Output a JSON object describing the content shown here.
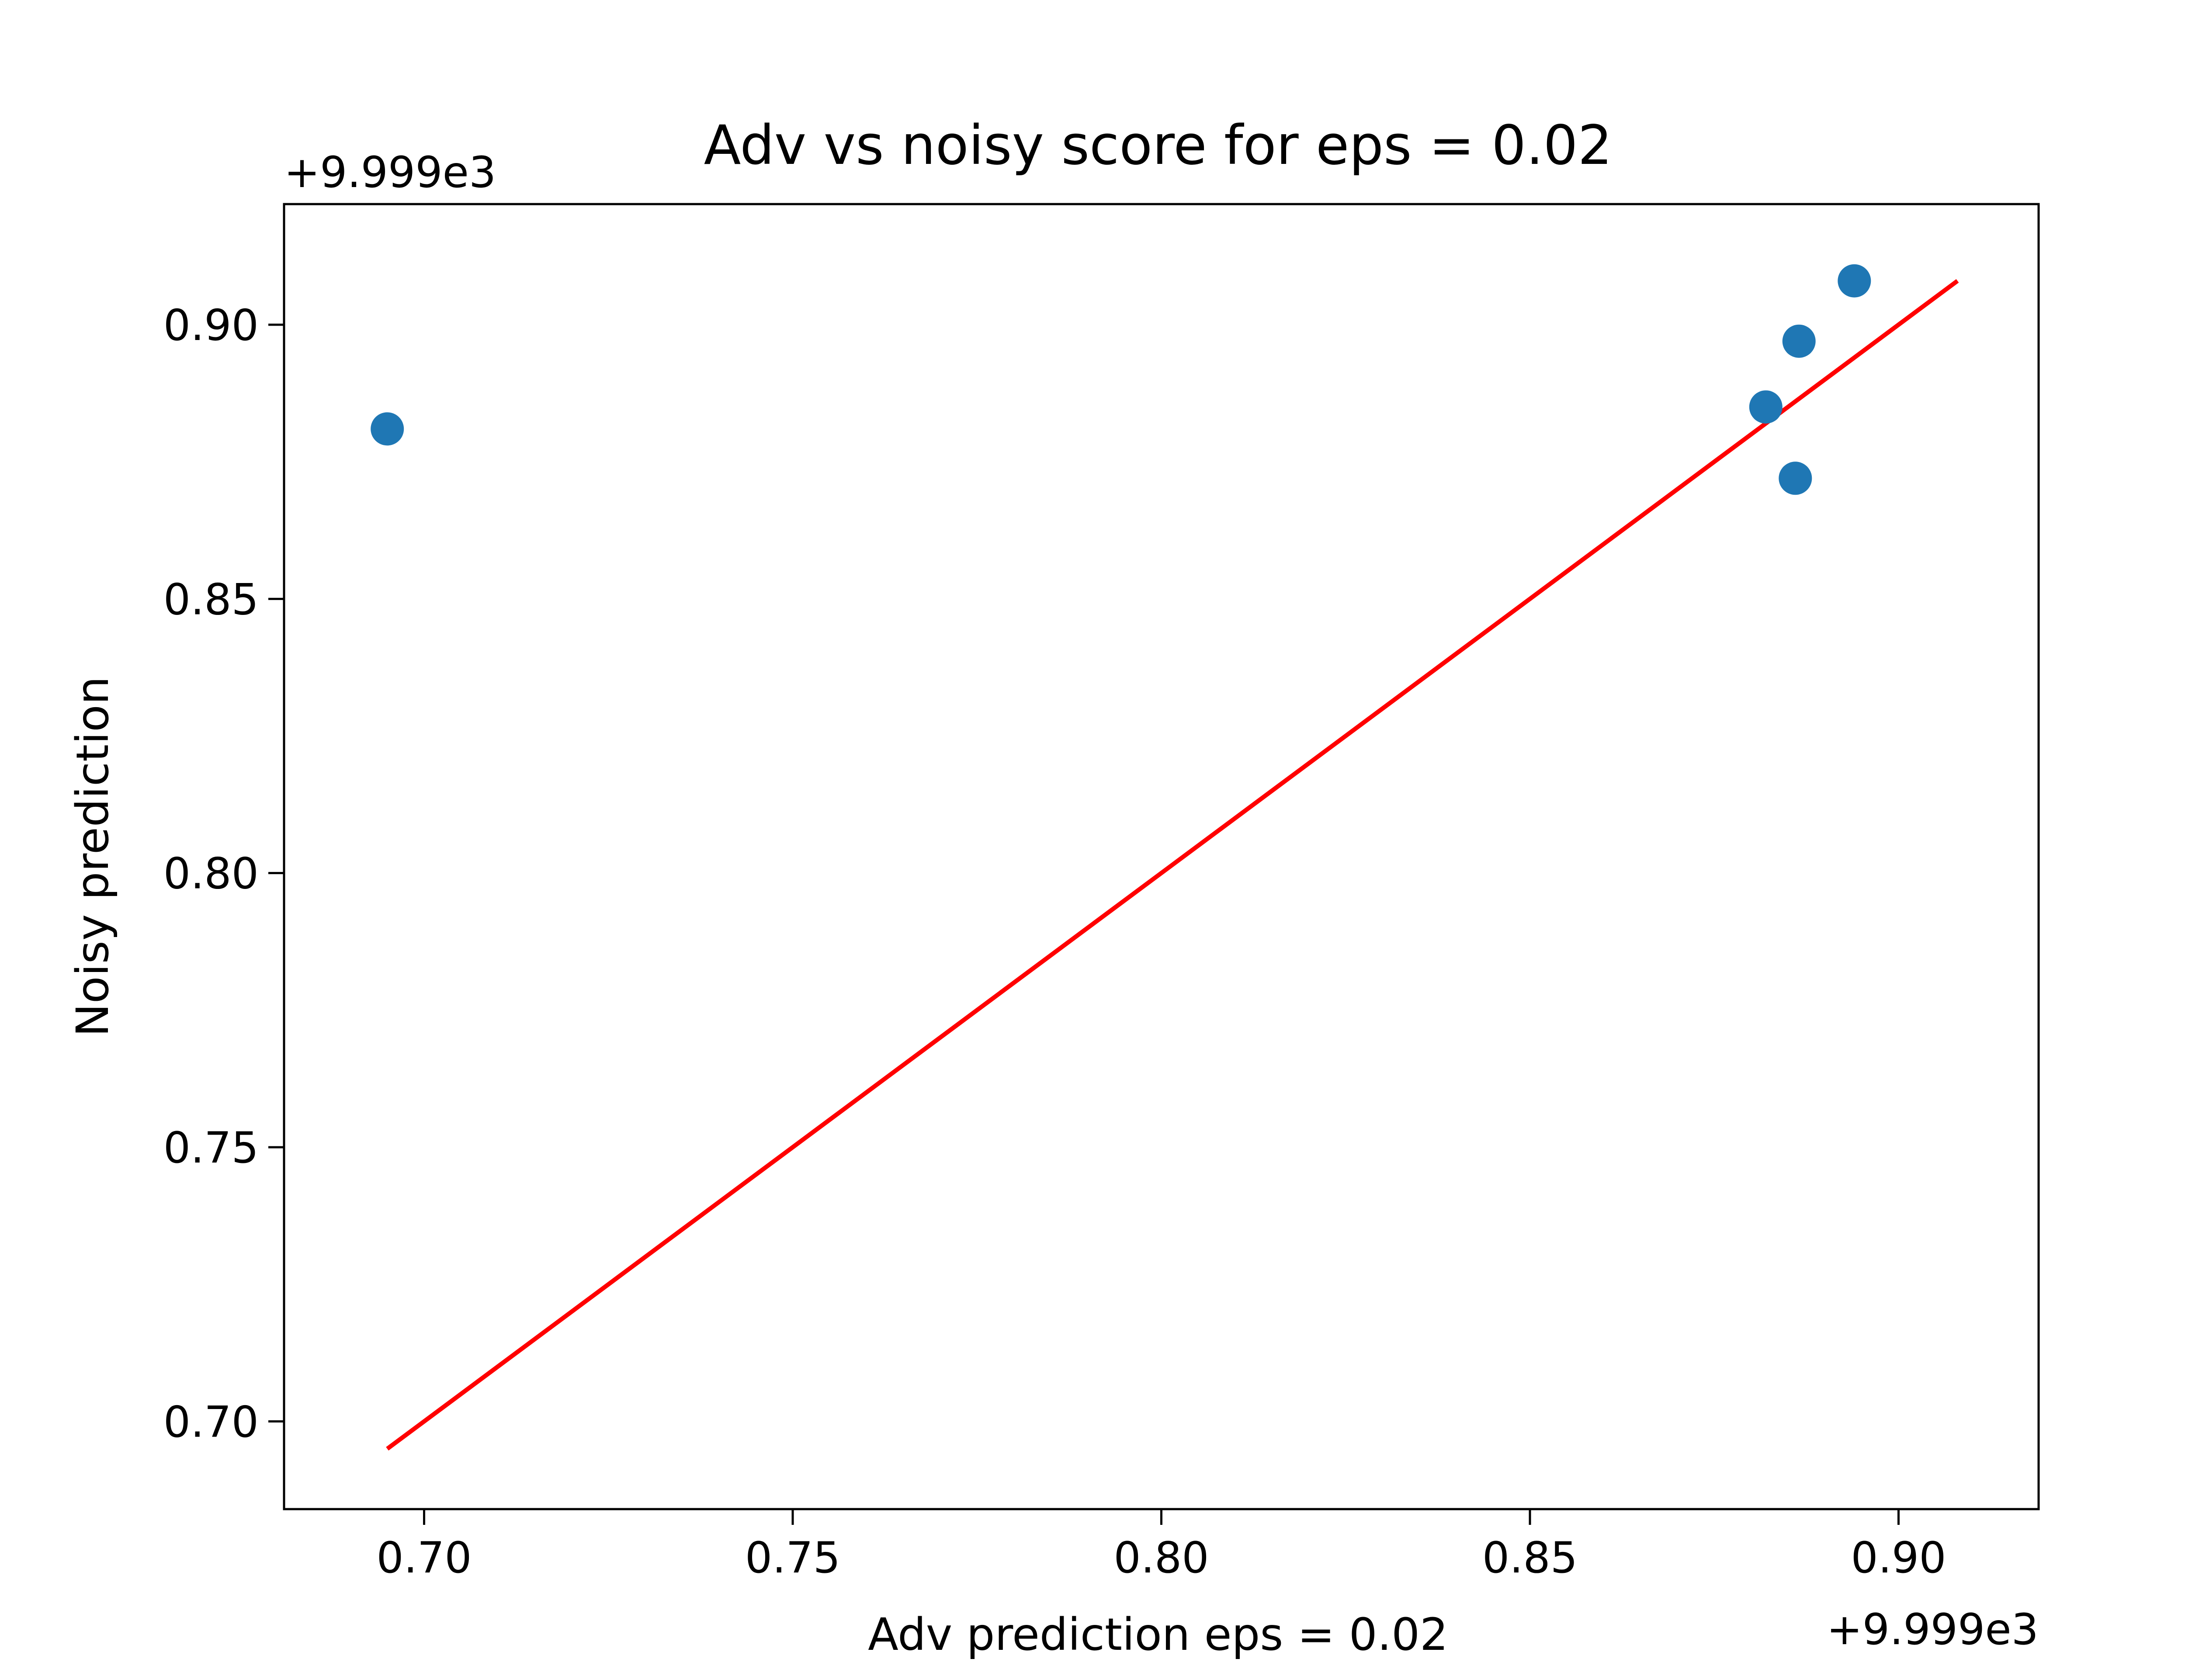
{
  "chart_data": {
    "type": "scatter",
    "title": "Adv vs noisy score for eps = 0.02",
    "xlabel": "Adv prediction eps = 0.02",
    "ylabel": "Noisy prediction",
    "x_offset_label": "+9.999e3",
    "y_offset_label": "+9.999e3",
    "x_ticks": [
      "0.70",
      "0.75",
      "0.80",
      "0.85",
      "0.90"
    ],
    "y_ticks": [
      "0.70",
      "0.75",
      "0.80",
      "0.85",
      "0.90"
    ],
    "xlim": [
      9999.681,
      9999.919
    ],
    "ylim": [
      9999.684,
      9999.922
    ],
    "grid": false,
    "series": [
      {
        "kind": "scatter",
        "color": "#1f77b4",
        "points": [
          {
            "x": 9999.695,
            "y": 9999.881
          },
          {
            "x": 9999.882,
            "y": 9999.885
          },
          {
            "x": 9999.8865,
            "y": 9999.897
          },
          {
            "x": 9999.886,
            "y": 9999.872
          },
          {
            "x": 9999.894,
            "y": 9999.908
          }
        ]
      },
      {
        "kind": "line",
        "color": "#ff0000",
        "points": [
          {
            "x": 9999.695,
            "y": 9999.695
          },
          {
            "x": 9999.908,
            "y": 9999.908
          }
        ]
      }
    ]
  }
}
